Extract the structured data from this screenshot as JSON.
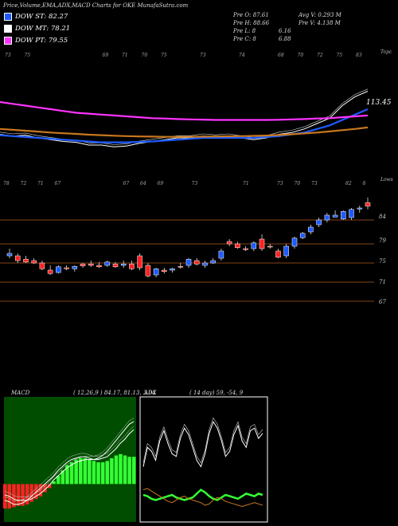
{
  "header": "Price,Volume,EMA,ADX,MACD Charts for OKE MunafaSutra.com",
  "legend": [
    {
      "label": "DOW ST: 82.27",
      "color": "#1e5bff"
    },
    {
      "label": "DOW MT: 78.21",
      "color": "#ffffff"
    },
    {
      "label": "DOW PT: 79.55",
      "color": "#ff33ff"
    }
  ],
  "stats": {
    "col1": [
      "Pre  O: 87.61",
      "Pre  H: 88.66",
      "Pre  L: 8",
      "Pre  C: 8"
    ],
    "col1b": [
      "",
      "",
      "6.16",
      "6.88"
    ],
    "col2": [
      "Avg V: 0.293  M",
      "Pre  V: 4.138  M"
    ]
  },
  "ema_panel": {
    "top_tick_labels": [
      "73",
      "75",
      "",
      "",
      "",
      "69",
      "71",
      "70",
      "75",
      "",
      "73",
      "",
      "74",
      "",
      "68",
      "70",
      "72",
      "75",
      "83"
    ],
    "right_label": "Topc",
    "price_label": "113.45",
    "colors": {
      "blue": "#1e5bff",
      "magenta": "#ff33ff",
      "orange": "#c8781e",
      "white": "#ffffff"
    }
  },
  "candle_panel": {
    "top_tick_labels": [
      "78",
      "72",
      "71",
      "67",
      "",
      "",
      "",
      "67",
      "64",
      "69",
      "",
      "73",
      "",
      "",
      "71",
      "",
      "73",
      "70",
      "73",
      "",
      "82",
      "8"
    ],
    "right_label": "Lows",
    "price_labels": [
      "84",
      "79",
      "75",
      "71",
      "67"
    ],
    "up_color": "#1e5bff",
    "down_color": "#ff2222"
  },
  "macd_panel": {
    "title": "MACD",
    "values": "( 12,26,9 ) 84.17, 81.13, 3.04"
  },
  "adx_panel": {
    "title": "ADX",
    "values": "( 14 day) 59, -54, 9"
  },
  "chart_data": [
    {
      "type": "line",
      "title": "EMA",
      "x": [
        1,
        2,
        3,
        4,
        5,
        6,
        7,
        8,
        9,
        10,
        11,
        12,
        13,
        14,
        15,
        16,
        17,
        18,
        19,
        20,
        21,
        22,
        23,
        24,
        25,
        26,
        27,
        28,
        29,
        30
      ],
      "series": [
        {
          "color": "#ffffff",
          "values": [
            74,
            73,
            73.5,
            72,
            71,
            70,
            69.5,
            68,
            68,
            67,
            67.5,
            69,
            70,
            71,
            72,
            72,
            73,
            72.5,
            73,
            72,
            71,
            72,
            74,
            75,
            77,
            80,
            83,
            90,
            95,
            98
          ]
        },
        {
          "color": "#1e5bff",
          "values": [
            73.5,
            73,
            72.5,
            72,
            71.5,
            71,
            70.5,
            70,
            69.5,
            69.5,
            69.5,
            69.8,
            70,
            70.5,
            71,
            71.5,
            72,
            72,
            72,
            72,
            72,
            72.5,
            73,
            74,
            75,
            77,
            79,
            82,
            85,
            88
          ]
        },
        {
          "color": "#ff33ff",
          "values": [
            92,
            91,
            90,
            89,
            88,
            87,
            86,
            85.5,
            85,
            84.5,
            84,
            83.5,
            83,
            82.8,
            82.5,
            82.3,
            82.2,
            82,
            82,
            82,
            82,
            82,
            82.1,
            82.3,
            82.5,
            82.8,
            83,
            83.5,
            84,
            84.5
          ]
        },
        {
          "color": "#c8781e",
          "values": [
            77,
            76.5,
            76,
            75.5,
            75,
            74.6,
            74.2,
            73.8,
            73.5,
            73.2,
            73,
            72.8,
            72.7,
            72.6,
            72.6,
            72.6,
            72.7,
            72.8,
            72.9,
            73,
            73.1,
            73.3,
            73.6,
            74,
            74.5,
            75,
            75.6,
            76.3,
            77,
            77.8
          ]
        }
      ]
    },
    {
      "type": "candlestick",
      "title": "Price",
      "ylim": [
        65,
        90
      ],
      "candles": [
        {
          "o": 76.5,
          "h": 78,
          "l": 76,
          "c": 77,
          "up": true
        },
        {
          "o": 76.5,
          "h": 77,
          "l": 75,
          "c": 75.5,
          "up": false
        },
        {
          "o": 75.8,
          "h": 76.5,
          "l": 75,
          "c": 75.2,
          "up": false
        },
        {
          "o": 75.5,
          "h": 76,
          "l": 74.8,
          "c": 75,
          "up": false
        },
        {
          "o": 75,
          "h": 75.5,
          "l": 73.5,
          "c": 73.8,
          "up": false
        },
        {
          "o": 73.5,
          "h": 74.5,
          "l": 72.5,
          "c": 72.8,
          "up": false
        },
        {
          "o": 73,
          "h": 74.5,
          "l": 72.8,
          "c": 74.2,
          "up": true
        },
        {
          "o": 74,
          "h": 74.5,
          "l": 73.5,
          "c": 73.8,
          "up": false
        },
        {
          "o": 73.8,
          "h": 74.5,
          "l": 73.2,
          "c": 74.3,
          "up": true
        },
        {
          "o": 74.4,
          "h": 75,
          "l": 74,
          "c": 74.8,
          "up": false
        },
        {
          "o": 74.8,
          "h": 75.5,
          "l": 74.2,
          "c": 74.5,
          "up": false
        },
        {
          "o": 74.5,
          "h": 75.2,
          "l": 74,
          "c": 74.2,
          "up": false
        },
        {
          "o": 74.5,
          "h": 75.5,
          "l": 74.2,
          "c": 75.2,
          "up": true
        },
        {
          "o": 74.8,
          "h": 75.2,
          "l": 74,
          "c": 74.2,
          "up": false
        },
        {
          "o": 74.5,
          "h": 75.5,
          "l": 74,
          "c": 74.8,
          "up": true
        },
        {
          "o": 74.8,
          "h": 75.5,
          "l": 73.5,
          "c": 73.8,
          "up": false
        },
        {
          "o": 76.5,
          "h": 77,
          "l": 73.5,
          "c": 74,
          "up": false
        },
        {
          "o": 74.5,
          "h": 75,
          "l": 72,
          "c": 72.3,
          "up": false
        },
        {
          "o": 72.5,
          "h": 74,
          "l": 72,
          "c": 73.8,
          "up": true
        },
        {
          "o": 73.5,
          "h": 74,
          "l": 72.8,
          "c": 73.2,
          "up": false
        },
        {
          "o": 73.5,
          "h": 74,
          "l": 73,
          "c": 73.8,
          "up": true
        },
        {
          "o": 74.2,
          "h": 75,
          "l": 73.8,
          "c": 74.3,
          "up": false
        },
        {
          "o": 74.5,
          "h": 76,
          "l": 74,
          "c": 75.8,
          "up": true
        },
        {
          "o": 75.5,
          "h": 76,
          "l": 74.5,
          "c": 74.8,
          "up": false
        },
        {
          "o": 74.5,
          "h": 75.5,
          "l": 74,
          "c": 75,
          "up": true
        },
        {
          "o": 75,
          "h": 76,
          "l": 74.8,
          "c": 75.5,
          "up": true
        },
        {
          "o": 76,
          "h": 78,
          "l": 75.5,
          "c": 77.5,
          "up": true
        },
        {
          "o": 79.5,
          "h": 80,
          "l": 78.5,
          "c": 79,
          "up": false
        },
        {
          "o": 79,
          "h": 79.5,
          "l": 78,
          "c": 78.2,
          "up": false
        },
        {
          "o": 78,
          "h": 78.5,
          "l": 77.5,
          "c": 77.8,
          "up": false
        },
        {
          "o": 78,
          "h": 79.5,
          "l": 77.5,
          "c": 79.2,
          "up": true
        },
        {
          "o": 80,
          "h": 81,
          "l": 77.5,
          "c": 78,
          "up": false
        },
        {
          "o": 78.5,
          "h": 79,
          "l": 78,
          "c": 78.4,
          "up": false
        },
        {
          "o": 77.5,
          "h": 78,
          "l": 76,
          "c": 76.2,
          "up": false
        },
        {
          "o": 76.5,
          "h": 79,
          "l": 76,
          "c": 78.5,
          "up": true
        },
        {
          "o": 78.5,
          "h": 80.5,
          "l": 78,
          "c": 80.2,
          "up": true
        },
        {
          "o": 80.3,
          "h": 81.5,
          "l": 80,
          "c": 81.2,
          "up": true
        },
        {
          "o": 81.5,
          "h": 83,
          "l": 81,
          "c": 82.5,
          "up": true
        },
        {
          "o": 83,
          "h": 84.5,
          "l": 82.5,
          "c": 84,
          "up": true
        },
        {
          "o": 84,
          "h": 85.5,
          "l": 83.5,
          "c": 85,
          "up": true
        },
        {
          "o": 85,
          "h": 86,
          "l": 84.8,
          "c": 84.6,
          "up": true
        },
        {
          "o": 84.2,
          "h": 86,
          "l": 84,
          "c": 85.8,
          "up": true
        },
        {
          "o": 84.5,
          "h": 86.5,
          "l": 84,
          "c": 86.2,
          "up": true
        },
        {
          "o": 86.3,
          "h": 87,
          "l": 85.5,
          "c": 86.5,
          "up": true
        },
        {
          "o": 87.6,
          "h": 88.7,
          "l": 86.2,
          "c": 86.9,
          "up": false
        }
      ]
    },
    {
      "type": "bar",
      "title": "MACD",
      "histogram": [
        -1.8,
        -1.8,
        -1.7,
        -1.6,
        -1.6,
        -1.5,
        -1.3,
        -1.1,
        -0.9,
        -0.6,
        -0.3,
        0.2,
        0.6,
        1.0,
        1.4,
        1.6,
        1.8,
        1.9,
        1.9,
        1.8,
        1.7,
        1.6,
        1.6,
        1.7,
        1.9,
        2.1,
        2.2,
        2.1,
        2.0,
        2.0
      ],
      "series": [
        {
          "name": "MACD",
          "values": [
            -1.2,
            -1.3,
            -1.5,
            -1.5,
            -1.4,
            -1.2,
            -0.9,
            -0.6,
            -0.3,
            0.0,
            0.3,
            0.6,
            1.0,
            1.3,
            1.6,
            1.8,
            1.9,
            2.0,
            2.0,
            1.9,
            1.8,
            1.9,
            2.1,
            2.4,
            2.8,
            3.2,
            3.6,
            4.0,
            4.4,
            4.6
          ]
        },
        {
          "name": "Signal",
          "values": [
            -0.8,
            -0.9,
            -1.1,
            -1.2,
            -1.2,
            -1.2,
            -1.1,
            -0.9,
            -0.7,
            -0.4,
            -0.1,
            0.3,
            0.6,
            0.9,
            1.2,
            1.4,
            1.6,
            1.7,
            1.8,
            1.8,
            1.8,
            1.8,
            1.9,
            2.0,
            2.3,
            2.6,
            3.0,
            3.3,
            3.7,
            4.0
          ]
        }
      ]
    },
    {
      "type": "line",
      "title": "ADX",
      "series": [
        {
          "name": "ADX",
          "color": "#ffffff",
          "values": [
            40,
            55,
            52,
            45,
            60,
            68,
            58,
            50,
            48,
            62,
            70,
            65,
            55,
            45,
            40,
            50,
            66,
            75,
            70,
            60,
            48,
            52,
            65,
            72,
            60,
            55,
            68,
            70,
            62,
            66
          ]
        },
        {
          "name": "+DI",
          "color": "#33ff33",
          "values": [
            18,
            17,
            15,
            14,
            15,
            16,
            17,
            18,
            16,
            15,
            14,
            15,
            16,
            19,
            22,
            20,
            17,
            15,
            14,
            16,
            18,
            17,
            16,
            15,
            17,
            19,
            18,
            17,
            19,
            18
          ]
        },
        {
          "name": "-DI",
          "color": "#c8781e",
          "values": [
            22,
            23,
            21,
            19,
            17,
            15,
            13,
            12,
            14,
            16,
            17,
            15,
            14,
            13,
            12,
            10,
            11,
            14,
            16,
            15,
            13,
            12,
            11,
            10,
            9,
            10,
            11,
            12,
            11,
            10
          ]
        }
      ]
    }
  ]
}
